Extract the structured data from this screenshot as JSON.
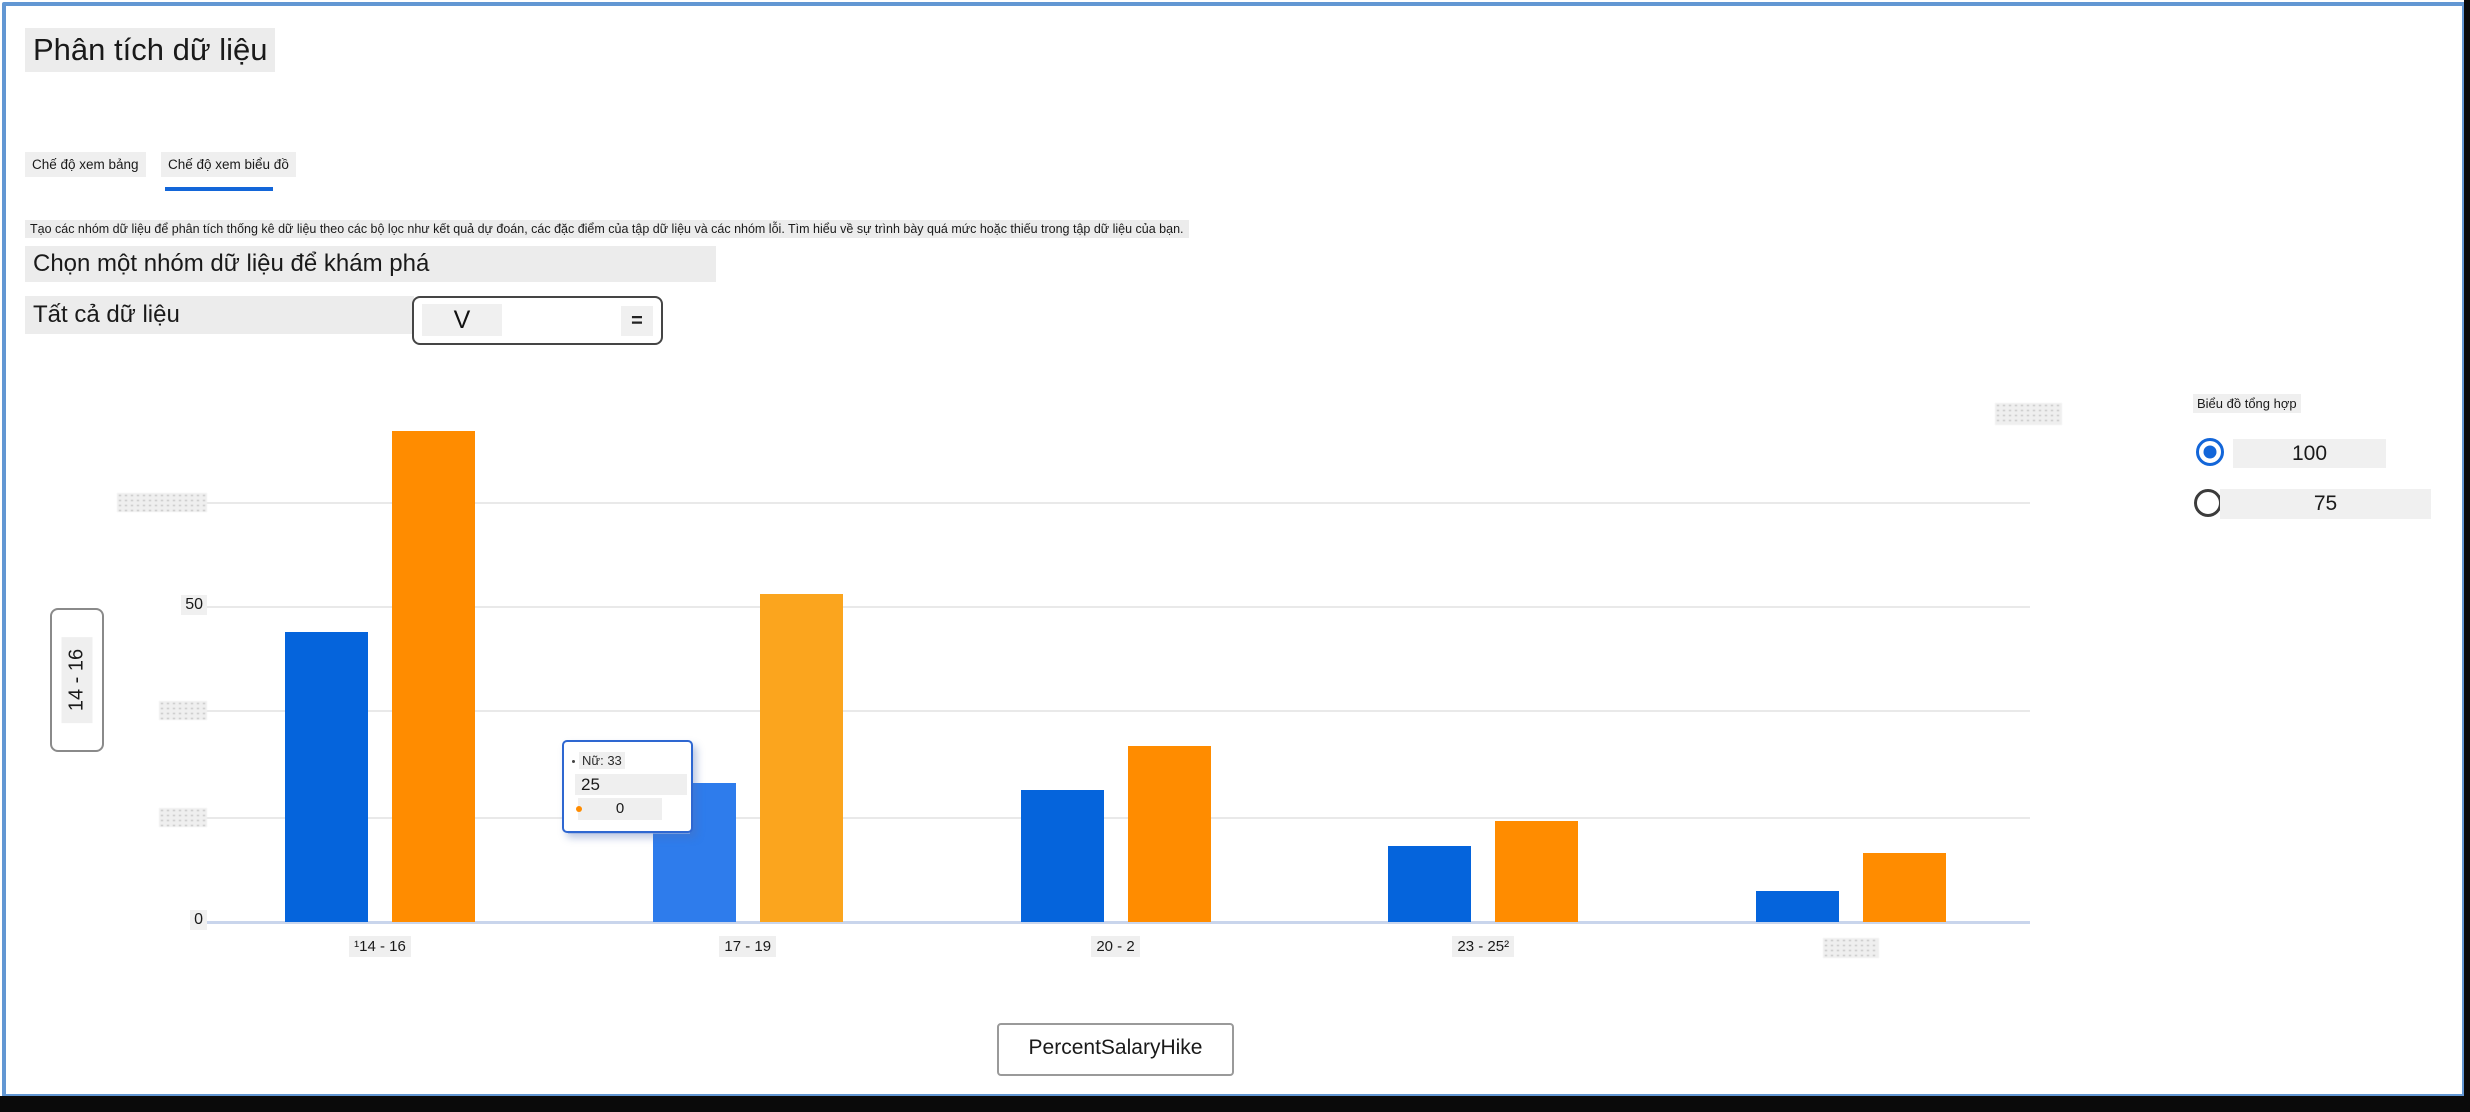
{
  "header": {
    "title": "Phân tích dữ liệu"
  },
  "tabs": [
    {
      "label": "Chế độ xem bảng",
      "active": false
    },
    {
      "label": "Chế độ xem biểu đồ",
      "active": true
    }
  ],
  "description": "Tạo các nhóm dữ liệu để phân tích thống kê dữ liệu theo các bộ lọc như kết quả dự đoán, các đặc điểm của tập dữ liệu và các nhóm lỗi. Tìm hiểu về sự trình bày quá mức hoặc thiếu trong tập dữ liệu của bạn.",
  "section": {
    "heading": "Chọn một nhóm dữ liệu để khám phá",
    "cohort_label": "Tất cả dữ liệu",
    "dropdown": {
      "chevron": "V",
      "menu_icon": "="
    }
  },
  "y_axis_box": {
    "label": "14 - 16"
  },
  "x_axis_button": {
    "label": "PercentSalaryHike"
  },
  "tooltip": {
    "header": "Nữ: 33",
    "rows": [
      "25",
      "0"
    ]
  },
  "side_panel": {
    "title": "Biểu đồ tổng hợp",
    "options": [
      {
        "label": "100",
        "selected": true
      },
      {
        "label": "75",
        "selected": false
      }
    ]
  },
  "colors": {
    "bar_blue": "#0564DC",
    "bar_blue_highlight": "#2E7CEC",
    "bar_orange": "#FF8C00",
    "bar_orange_highlight": "#FBA51E",
    "accent_blue": "#1366D9",
    "frame_blue": "#6297D3",
    "tooltip_border": "#2E67D1"
  },
  "chart_data": {
    "type": "bar",
    "title": "",
    "xlabel": "PercentSalaryHike",
    "ylabel": "",
    "ylim": [
      0,
      80
    ],
    "grid": true,
    "legend_position": "none",
    "categories": [
      "¹14 - 16",
      "17 - 19",
      "20 - 2",
      "23 - 25²",
      ""
    ],
    "series": [
      {
        "name": "blue",
        "values": [
          46,
          22,
          21,
          12,
          5
        ]
      },
      {
        "name": "orange",
        "values": [
          78,
          52,
          28,
          16,
          11
        ]
      }
    ],
    "highlighted_group_index": 1,
    "y_ticks": [
      {
        "value": 0,
        "label": "0"
      },
      {
        "value": 16.5,
        "label": ""
      },
      {
        "value": 33.5,
        "label": ""
      },
      {
        "value": 50,
        "label": "50"
      },
      {
        "value": 66.5,
        "label": ""
      }
    ]
  }
}
